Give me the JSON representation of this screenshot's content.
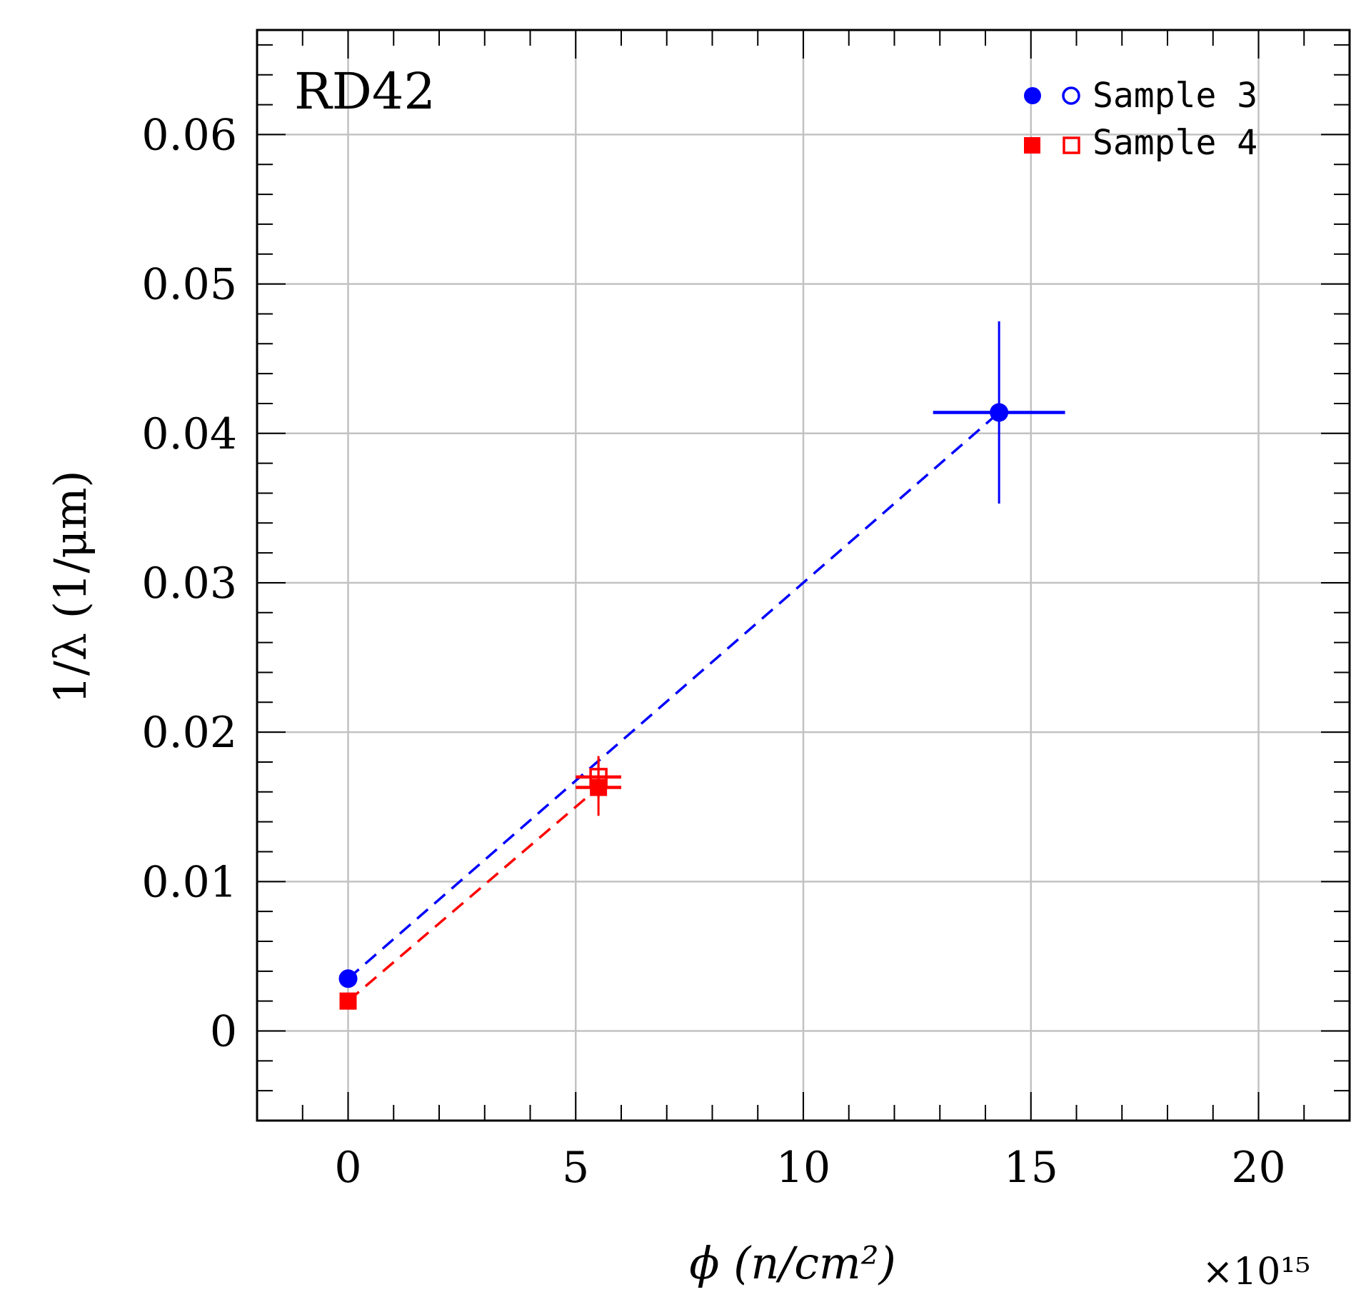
{
  "chart_data": {
    "type": "scatter",
    "annotation": "RD42",
    "xlabel": "ϕ (n/cm²)",
    "ylabel": "1/λ (1/μm)",
    "x_multiplier": "×10¹⁵",
    "xlim": [
      -2,
      22
    ],
    "ylim": [
      -0.006,
      0.067
    ],
    "x_ticks": [
      0,
      5,
      10,
      15,
      20
    ],
    "x_tick_labels": [
      "0",
      "5",
      "10",
      "15",
      "20"
    ],
    "y_ticks": [
      0,
      0.01,
      0.02,
      0.03,
      0.04,
      0.05,
      0.06
    ],
    "y_tick_labels": [
      "0",
      "0.01",
      "0.02",
      "0.03",
      "0.04",
      "0.05",
      "0.06"
    ],
    "x_minor_step": 1,
    "y_minor_step": 0.002,
    "grid": true,
    "legend_position": "top-right",
    "series": [
      {
        "name": "Sample 3",
        "color": "#0000ff",
        "marker": "circle",
        "filled_points": [
          {
            "x": 0,
            "y": 0.0035,
            "xerr": 0,
            "yerr": 0
          },
          {
            "x": 14.3,
            "y": 0.0414,
            "xerr": 1.45,
            "yerr": 0.0061
          }
        ],
        "open_points": [],
        "fit_line": [
          [
            0,
            0.0035
          ],
          [
            14.3,
            0.0414
          ]
        ]
      },
      {
        "name": "Sample 4",
        "color": "#ff0000",
        "marker": "square",
        "filled_points": [
          {
            "x": 0,
            "y": 0.002,
            "xerr": 0,
            "yerr": 0
          },
          {
            "x": 5.5,
            "y": 0.0163,
            "xerr": 0.5,
            "yerr": 0.0019
          }
        ],
        "open_points": [
          {
            "x": 5.5,
            "y": 0.017,
            "xerr": 0.5,
            "yerr": 0.0014
          }
        ],
        "fit_line": [
          [
            0,
            0.002
          ],
          [
            5.5,
            0.0163
          ]
        ]
      }
    ]
  }
}
